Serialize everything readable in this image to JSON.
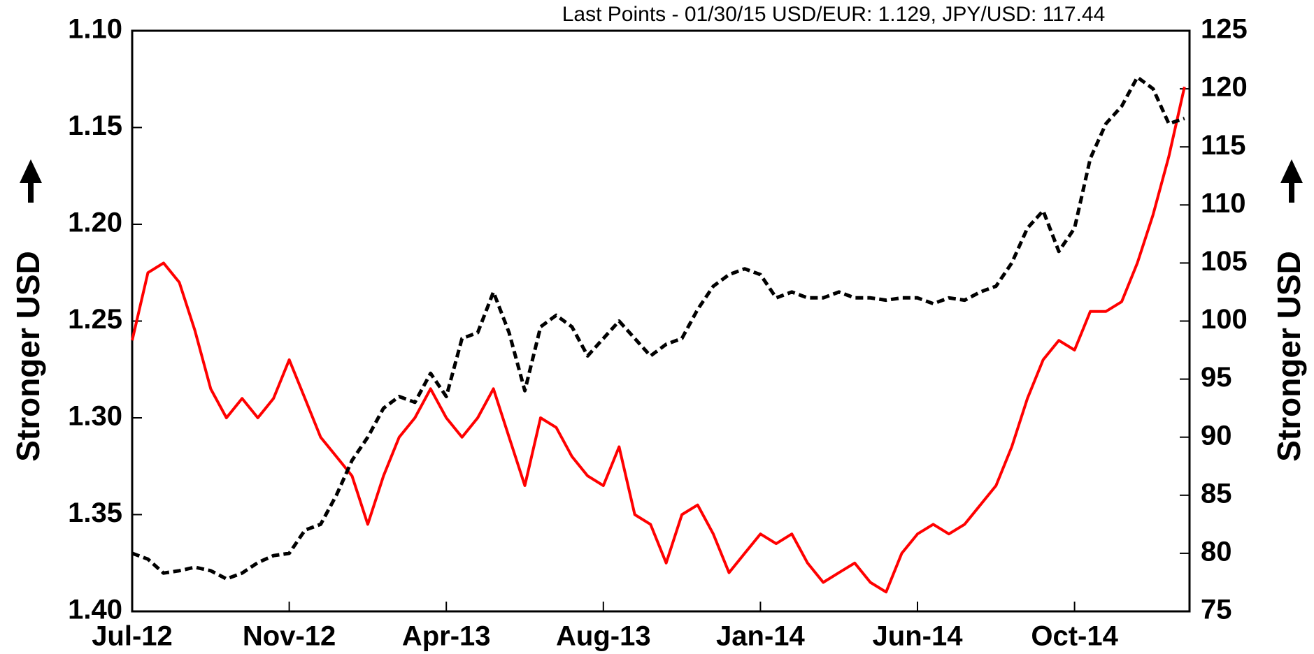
{
  "chart_data": {
    "type": "line",
    "title": "Last Points - 01/30/15 USD/EUR: 1.129, JPY/USD: 117.44",
    "ylabel": "Stronger USD",
    "y2label": "Stronger USD",
    "categories": [
      "Jul-12",
      null,
      null,
      null,
      null,
      null,
      null,
      null,
      null,
      null,
      "Nov-12",
      null,
      null,
      null,
      null,
      null,
      null,
      null,
      null,
      null,
      "Apr-13",
      null,
      null,
      null,
      null,
      null,
      null,
      null,
      null,
      null,
      "Aug-13",
      null,
      null,
      null,
      null,
      null,
      null,
      null,
      null,
      null,
      "Jan-14",
      null,
      null,
      null,
      null,
      null,
      null,
      null,
      null,
      null,
      "Jun-14",
      null,
      null,
      null,
      null,
      null,
      null,
      null,
      null,
      null,
      "Oct-14",
      null,
      null,
      null,
      null,
      null,
      null,
      null
    ],
    "ylim": [
      1.1,
      1.4
    ],
    "y_inverted": true,
    "yticks": [
      {
        "value": 1.1,
        "label": "1.10"
      },
      1.15,
      {
        "value": 1.2,
        "label": "1.20"
      },
      1.25,
      {
        "value": 1.3,
        "label": "1.30"
      },
      1.35,
      {
        "value": 1.4,
        "label": "1.40"
      }
    ],
    "y2lim": [
      75,
      125
    ],
    "y2ticks": [
      75,
      80,
      85,
      90,
      95,
      100,
      105,
      110,
      115,
      120,
      125
    ],
    "series": [
      {
        "name": "USD/EUR",
        "color": "#ff0000",
        "dashed": false,
        "values": [
          1.26,
          1.225,
          1.22,
          1.23,
          1.255,
          1.285,
          1.3,
          1.29,
          1.3,
          1.29,
          1.27,
          1.29,
          1.31,
          1.32,
          1.33,
          1.355,
          1.33,
          1.31,
          1.3,
          1.285,
          1.3,
          1.31,
          1.3,
          1.285,
          1.31,
          1.335,
          1.3,
          1.305,
          1.32,
          1.33,
          1.335,
          1.315,
          1.35,
          1.355,
          1.375,
          1.35,
          1.345,
          1.36,
          1.38,
          1.37,
          1.36,
          1.365,
          1.36,
          1.375,
          1.385,
          1.38,
          1.375,
          1.385,
          1.39,
          1.37,
          1.36,
          1.355,
          1.36,
          1.355,
          1.345,
          1.335,
          1.315,
          1.29,
          1.27,
          1.26,
          1.265,
          1.245,
          1.245,
          1.24,
          1.22,
          1.195,
          1.165,
          1.129
        ]
      },
      {
        "name": "JPY/USD",
        "color": "#000000",
        "dashed": true,
        "axis": "y2",
        "values": [
          80,
          79.5,
          78.3,
          78.5,
          78.8,
          78.5,
          77.8,
          78.3,
          79.2,
          79.8,
          80,
          82,
          82.5,
          85,
          88,
          90,
          92.5,
          93.5,
          93,
          95.5,
          93.5,
          98.5,
          99,
          102.5,
          99,
          94,
          99.5,
          100.5,
          99.5,
          97,
          98.5,
          100,
          98.5,
          97,
          98,
          98.5,
          101,
          103,
          104,
          104.5,
          104,
          102,
          102.5,
          102,
          102,
          102.5,
          102,
          102,
          101.8,
          102,
          102,
          101.5,
          102,
          101.8,
          102.5,
          103,
          105,
          108,
          109.5,
          106,
          108,
          114,
          117,
          118.5,
          121,
          120,
          117,
          117.44
        ]
      }
    ]
  }
}
